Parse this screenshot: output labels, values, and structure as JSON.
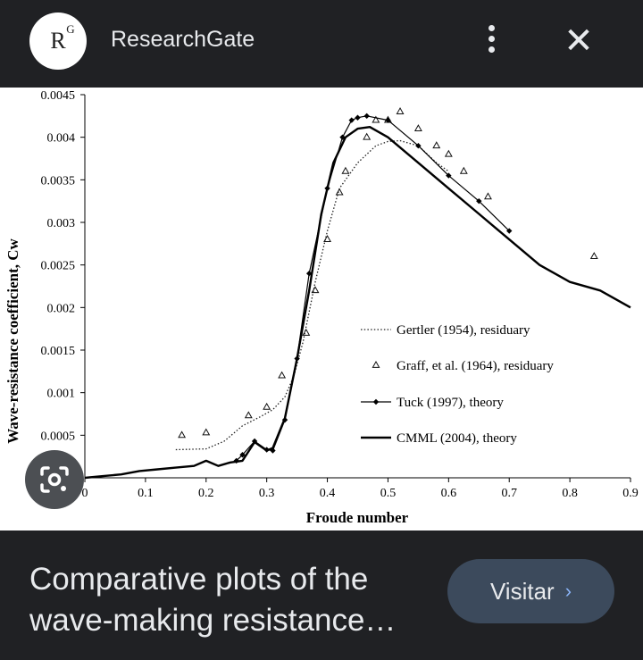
{
  "header": {
    "logo_text": "R",
    "logo_superscript": "G",
    "site_name": "ResearchGate"
  },
  "footer": {
    "caption": "Comparative plots of the wave-making resistance…",
    "visit_label": "Visitar",
    "visit_chevron": "›"
  },
  "icons": {
    "menu": "more-vert-icon",
    "close": "close-icon",
    "lens": "google-lens-camera-icon"
  },
  "chart_data": {
    "type": "line",
    "title": "",
    "xlabel": "Froude number",
    "ylabel": "Wave-resistance coefficient, Cw",
    "xlim": [
      0,
      0.9
    ],
    "ylim": [
      0,
      0.0045
    ],
    "xticks": [
      "0",
      "0.1",
      "0.2",
      "0.3",
      "0.4",
      "0.5",
      "0.6",
      "0.7",
      "0.8",
      "0.9"
    ],
    "yticks": [
      "0.0005",
      "0.001",
      "0.0015",
      "0.002",
      "0.0025",
      "0.003",
      "0.0035",
      "0.004",
      "0.0045"
    ],
    "legend_position": "center-right",
    "series": [
      {
        "name": "Gertler (1954), residuary",
        "style": "dotted",
        "x": [
          0.15,
          0.2,
          0.23,
          0.26,
          0.29,
          0.31,
          0.33,
          0.345,
          0.36,
          0.38,
          0.4,
          0.42,
          0.45,
          0.48,
          0.5,
          0.52,
          0.55,
          0.58,
          0.6
        ],
        "y": [
          0.00033,
          0.00034,
          0.00043,
          0.00061,
          0.00072,
          0.0008,
          0.00095,
          0.0012,
          0.0016,
          0.0023,
          0.0029,
          0.0034,
          0.0037,
          0.0039,
          0.00395,
          0.00396,
          0.0039,
          0.0037,
          0.0036
        ]
      },
      {
        "name": "Graff, et al. (1964), residuary",
        "style": "triangle-markers",
        "x": [
          0.16,
          0.2,
          0.27,
          0.3,
          0.325,
          0.365,
          0.38,
          0.4,
          0.42,
          0.43,
          0.465,
          0.48,
          0.5,
          0.52,
          0.55,
          0.58,
          0.6,
          0.625,
          0.665,
          0.84
        ],
        "y": [
          0.0005,
          0.00053,
          0.00073,
          0.00083,
          0.0012,
          0.0017,
          0.0022,
          0.0028,
          0.00335,
          0.0036,
          0.004,
          0.0042,
          0.0042,
          0.0043,
          0.0041,
          0.0039,
          0.0038,
          0.0036,
          0.0033,
          0.0026
        ]
      },
      {
        "name": "Tuck (1997), theory",
        "style": "solid-diamond",
        "x": [
          0.25,
          0.26,
          0.28,
          0.3,
          0.31,
          0.33,
          0.35,
          0.37,
          0.4,
          0.425,
          0.44,
          0.45,
          0.465,
          0.5,
          0.55,
          0.6,
          0.65,
          0.7
        ],
        "y": [
          0.0002,
          0.00027,
          0.00043,
          0.00033,
          0.00032,
          0.00068,
          0.0014,
          0.0024,
          0.0034,
          0.004,
          0.0042,
          0.00423,
          0.00425,
          0.0042,
          0.0039,
          0.00355,
          0.00325,
          0.0029
        ]
      },
      {
        "name": "CMML (2004), theory",
        "style": "solid",
        "x": [
          0.0,
          0.03,
          0.06,
          0.09,
          0.12,
          0.15,
          0.18,
          0.2,
          0.22,
          0.24,
          0.26,
          0.28,
          0.3,
          0.31,
          0.33,
          0.35,
          0.37,
          0.39,
          0.41,
          0.43,
          0.45,
          0.47,
          0.5,
          0.55,
          0.6,
          0.65,
          0.7,
          0.75,
          0.8,
          0.85,
          0.9
        ],
        "y": [
          0.0,
          2e-05,
          4e-05,
          8e-05,
          0.0001,
          0.00012,
          0.00014,
          0.0002,
          0.00014,
          0.00018,
          0.0002,
          0.00042,
          0.00032,
          0.00035,
          0.0007,
          0.0014,
          0.0022,
          0.0031,
          0.0037,
          0.004,
          0.0041,
          0.00412,
          0.004,
          0.0037,
          0.0034,
          0.0031,
          0.0028,
          0.0025,
          0.0023,
          0.0022,
          0.002
        ]
      }
    ]
  }
}
